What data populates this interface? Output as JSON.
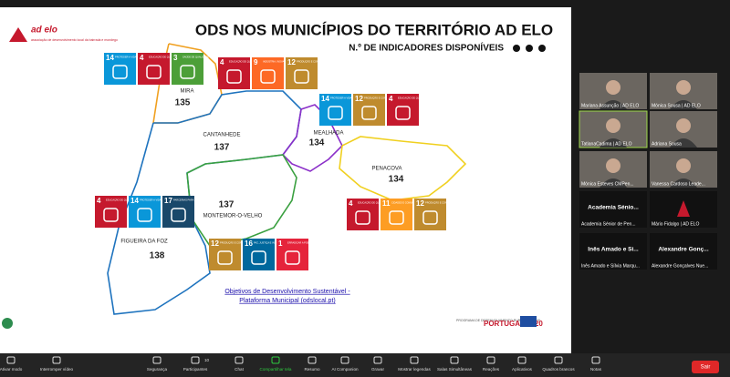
{
  "slide": {
    "logo": "ad elo",
    "logo_sub": "associação de desenvolvimento local da bairrada e mondego",
    "title": "ODS NOS MUNICÍPIOS DO TERRITÓRIO AD ELO",
    "subtitle": "N.º DE INDICADORES DISPONÍVEIS",
    "municipalities": [
      {
        "name": "MIRA",
        "count": 135
      },
      {
        "name": "CANTANHEDE",
        "count": 137
      },
      {
        "name": "MEALHADA",
        "count": 134
      },
      {
        "name": "PENACOVA",
        "count": 134
      },
      {
        "name": "MONTEMOR-O-VELHO",
        "count": 137
      },
      {
        "name": "FIGUEIRA DA FOZ",
        "count": 138
      }
    ],
    "sdg_groups": [
      [
        {
          "number": 14,
          "label": "PROTEGER A VIDA MARINHA"
        },
        {
          "number": 4,
          "label": "EDUCAÇÃO DE QUALIDADE"
        },
        {
          "number": 3,
          "label": "SAÚDE DE QUALIDADE"
        }
      ],
      [
        {
          "number": 4,
          "label": "EDUCAÇÃO DE QUALIDADE"
        },
        {
          "number": 9,
          "label": "INDÚSTRIA, INOVAÇÃO E INFRAESTRUTURAS"
        },
        {
          "number": 12,
          "label": "PRODUÇÃO E CONSUMO SUSTENTÁVEIS"
        }
      ],
      [
        {
          "number": 14,
          "label": "PROTEGER A VIDA MARINHA"
        },
        {
          "number": 12,
          "label": "PRODUÇÃO E CONSUMO SUSTENTÁVEIS"
        },
        {
          "number": 4,
          "label": "EDUCAÇÃO DE QUALIDADE"
        }
      ],
      [
        {
          "number": 4,
          "label": "EDUCAÇÃO DE QUALIDADE"
        },
        {
          "number": 11,
          "label": "CIDADES E COMUNIDADES SUSTENTÁVEIS"
        },
        {
          "number": 12,
          "label": "PRODUÇÃO E CONSUMO SUSTENTÁVEIS"
        }
      ],
      [
        {
          "number": 4,
          "label": "EDUCAÇÃO DE QUALIDADE"
        },
        {
          "number": 14,
          "label": "PROTEGER A VIDA MARINHA"
        },
        {
          "number": 17,
          "label": "PARCERIAS PARA A IMPLEMENTAÇÃO DOS OBJETIVOS"
        }
      ],
      [
        {
          "number": 12,
          "label": "PRODUÇÃO E CONSUMO SUSTENTÁVEIS"
        },
        {
          "number": 16,
          "label": "PAZ, JUSTIÇA E INSTITUIÇÕES EFICAZES"
        },
        {
          "number": 1,
          "label": "ERRADICAR A POBREZA"
        }
      ]
    ],
    "link": [
      "Objetivos de Desenvolvimento Sustentável -",
      "Plataforma Municipal (odslocal.pt)"
    ],
    "footer": [
      "PROGRAMA DE DESENVOLVIMENTO RURAL 2014-2020",
      "PORTUGAL 2020"
    ]
  },
  "participants": [
    {
      "name": "Mariana Assunção | AD ELO"
    },
    {
      "name": "Mónica Sousa | AD ELO"
    },
    {
      "name": "TatianaCadima | AD ELO"
    },
    {
      "name": "Adriana Sousa"
    },
    {
      "name": "Mónica Esteves CMPen..."
    },
    {
      "name": "Vanessa Cardoso Leade..."
    },
    {
      "big": "Academia Sénio...",
      "name": "Academia Sénior de Pen..."
    },
    {
      "name": "Mário Fidalgo | AD ELO"
    },
    {
      "big": "Inês Amado e Si...",
      "name": "Inês Amado e Sílvia Marqu..."
    },
    {
      "big": "Alexandre Gonç...",
      "name": "Alexandre Gonçalves Nue..."
    }
  ],
  "toolbar": {
    "items": [
      "Ativar modo",
      "Interromper vídeo",
      "Segurança",
      "Participantes",
      "Chat",
      "Compartilhar tela",
      "Resumo",
      "AI Companion",
      "Gravar",
      "Mostrar legendas",
      "Salas Simultâneas",
      "Reações",
      "Aplicativos",
      "Quadros brancos",
      "Notas"
    ],
    "count": 10,
    "leave": "Sair"
  }
}
